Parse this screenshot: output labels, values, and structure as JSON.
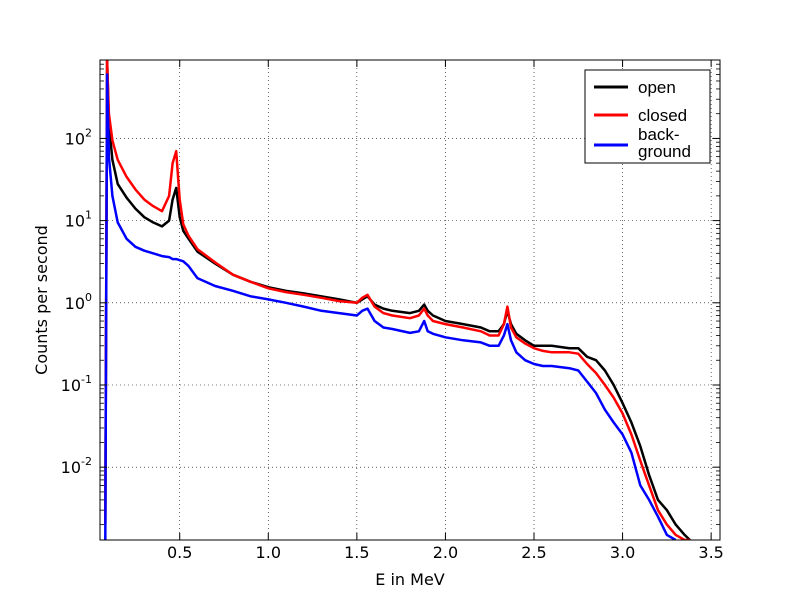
{
  "chart_data": {
    "type": "line",
    "title": "",
    "xlabel": "E in MeV",
    "ylabel": "Counts per second",
    "xlim": [
      0.05,
      3.55
    ],
    "ylim": [
      0.0013,
      900
    ],
    "yscale": "log",
    "grid": true,
    "legend_placement": "top-right",
    "x_ticks": [
      {
        "value": 0.5,
        "label": "0.5"
      },
      {
        "value": 1.0,
        "label": "1.0"
      },
      {
        "value": 1.5,
        "label": "1.5"
      },
      {
        "value": 2.0,
        "label": "2.0"
      },
      {
        "value": 2.5,
        "label": "2.5"
      },
      {
        "value": 3.0,
        "label": "3.0"
      },
      {
        "value": 3.5,
        "label": "3.5"
      }
    ],
    "y_ticks": [
      {
        "value": 0.01,
        "base": "10",
        "exp": "-2"
      },
      {
        "value": 0.1,
        "base": "10",
        "exp": "-1"
      },
      {
        "value": 1,
        "base": "10",
        "exp": "0"
      },
      {
        "value": 10,
        "base": "10",
        "exp": "1"
      },
      {
        "value": 100,
        "base": "10",
        "exp": "2"
      }
    ],
    "series": [
      {
        "name": "open",
        "color": "#000000",
        "x": [
          0.08,
          0.09,
          0.1,
          0.12,
          0.15,
          0.2,
          0.25,
          0.3,
          0.35,
          0.4,
          0.44,
          0.46,
          0.48,
          0.5,
          0.52,
          0.55,
          0.6,
          0.7,
          0.8,
          0.9,
          1.0,
          1.1,
          1.2,
          1.3,
          1.4,
          1.5,
          1.53,
          1.56,
          1.6,
          1.65,
          1.7,
          1.8,
          1.85,
          1.88,
          1.9,
          1.93,
          2.0,
          2.1,
          2.2,
          2.25,
          2.3,
          2.33,
          2.35,
          2.37,
          2.4,
          2.45,
          2.5,
          2.55,
          2.6,
          2.7,
          2.75,
          2.8,
          2.85,
          2.9,
          2.95,
          3.0,
          3.05,
          3.1,
          3.15,
          3.2,
          3.25,
          3.3,
          3.35,
          3.38
        ],
        "y": [
          0.002,
          900,
          150,
          55,
          28,
          19,
          14,
          11,
          9.5,
          8.5,
          10,
          18,
          25,
          11,
          7.5,
          6.0,
          4.2,
          3.0,
          2.2,
          1.8,
          1.55,
          1.4,
          1.3,
          1.2,
          1.1,
          1.0,
          1.1,
          1.2,
          0.95,
          0.85,
          0.8,
          0.75,
          0.8,
          0.95,
          0.8,
          0.7,
          0.6,
          0.55,
          0.5,
          0.45,
          0.45,
          0.55,
          0.8,
          0.55,
          0.42,
          0.35,
          0.3,
          0.3,
          0.3,
          0.28,
          0.28,
          0.22,
          0.2,
          0.15,
          0.1,
          0.06,
          0.035,
          0.018,
          0.008,
          0.004,
          0.003,
          0.002,
          0.0015,
          0.0013
        ]
      },
      {
        "name": "closed",
        "color": "#ff0000",
        "x": [
          0.08,
          0.09,
          0.1,
          0.12,
          0.15,
          0.2,
          0.25,
          0.3,
          0.35,
          0.4,
          0.44,
          0.46,
          0.48,
          0.5,
          0.52,
          0.55,
          0.6,
          0.7,
          0.8,
          0.9,
          1.0,
          1.1,
          1.2,
          1.3,
          1.4,
          1.5,
          1.53,
          1.56,
          1.6,
          1.65,
          1.7,
          1.8,
          1.85,
          1.88,
          1.9,
          1.93,
          2.0,
          2.1,
          2.2,
          2.25,
          2.3,
          2.33,
          2.35,
          2.37,
          2.4,
          2.45,
          2.5,
          2.55,
          2.6,
          2.7,
          2.75,
          2.8,
          2.85,
          2.9,
          2.95,
          3.0,
          3.05,
          3.1,
          3.15,
          3.2,
          3.25,
          3.3,
          3.35,
          3.38
        ],
        "y": [
          0.002,
          900,
          200,
          95,
          55,
          34,
          24,
          18,
          15,
          13,
          20,
          50,
          70,
          18,
          9.0,
          6.5,
          4.5,
          3.1,
          2.2,
          1.8,
          1.5,
          1.35,
          1.25,
          1.15,
          1.05,
          1.0,
          1.15,
          1.25,
          0.9,
          0.75,
          0.7,
          0.65,
          0.7,
          0.85,
          0.7,
          0.6,
          0.55,
          0.5,
          0.45,
          0.4,
          0.4,
          0.55,
          0.9,
          0.5,
          0.38,
          0.32,
          0.28,
          0.26,
          0.25,
          0.25,
          0.24,
          0.18,
          0.14,
          0.1,
          0.07,
          0.045,
          0.025,
          0.012,
          0.006,
          0.003,
          0.002,
          0.0015,
          0.0013,
          0.0013
        ]
      },
      {
        "name": "back-ground",
        "color": "#0000ff",
        "x": [
          0.08,
          0.09,
          0.1,
          0.12,
          0.15,
          0.2,
          0.25,
          0.3,
          0.35,
          0.4,
          0.44,
          0.46,
          0.48,
          0.5,
          0.52,
          0.55,
          0.6,
          0.7,
          0.8,
          0.9,
          1.0,
          1.1,
          1.2,
          1.3,
          1.4,
          1.5,
          1.53,
          1.56,
          1.6,
          1.65,
          1.7,
          1.8,
          1.85,
          1.88,
          1.9,
          1.93,
          2.0,
          2.1,
          2.2,
          2.25,
          2.3,
          2.33,
          2.35,
          2.37,
          2.4,
          2.45,
          2.5,
          2.55,
          2.6,
          2.7,
          2.75,
          2.8,
          2.85,
          2.9,
          2.95,
          3.0,
          3.05,
          3.1,
          3.15,
          3.2,
          3.25,
          3.3
        ],
        "y": [
          0.0013,
          600,
          60,
          20,
          9.5,
          6.0,
          4.8,
          4.3,
          4.0,
          3.7,
          3.6,
          3.4,
          3.4,
          3.3,
          3.2,
          2.8,
          2.0,
          1.6,
          1.4,
          1.2,
          1.1,
          1.0,
          0.9,
          0.8,
          0.75,
          0.7,
          0.8,
          0.85,
          0.6,
          0.5,
          0.48,
          0.43,
          0.45,
          0.6,
          0.45,
          0.42,
          0.38,
          0.35,
          0.33,
          0.3,
          0.3,
          0.4,
          0.55,
          0.35,
          0.25,
          0.2,
          0.18,
          0.17,
          0.17,
          0.16,
          0.15,
          0.11,
          0.08,
          0.05,
          0.035,
          0.025,
          0.015,
          0.006,
          0.004,
          0.0025,
          0.0015,
          0.0013
        ]
      }
    ]
  },
  "legend": {
    "items": [
      {
        "label": "open",
        "color": "#000000"
      },
      {
        "label": "closed",
        "color": "#ff0000"
      },
      {
        "label_lines": [
          "back-",
          "ground"
        ],
        "color": "#0000ff"
      }
    ]
  }
}
